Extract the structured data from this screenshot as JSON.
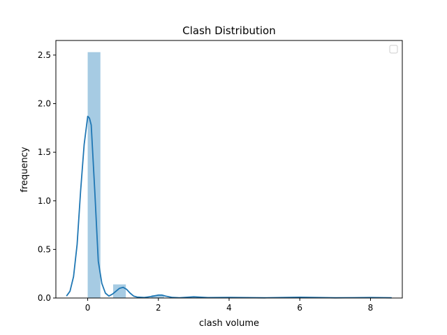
{
  "chart_data": {
    "type": "bar",
    "title": "Clash Distribution",
    "xlabel": "clash volume",
    "ylabel": "frequency",
    "xlim": [
      -0.9,
      8.9
    ],
    "ylim": [
      0,
      2.65
    ],
    "xticks": [
      "0",
      "2",
      "4",
      "6",
      "8"
    ],
    "xtick_values": [
      0,
      2,
      4,
      6,
      8
    ],
    "yticks": [
      "0.0",
      "0.5",
      "1.0",
      "1.5",
      "2.0",
      "2.5"
    ],
    "ytick_values": [
      0,
      0.5,
      1.0,
      1.5,
      2.0,
      2.5
    ],
    "histogram": {
      "bins": [
        {
          "x0": 0.0,
          "x1": 0.36,
          "value": 2.53
        },
        {
          "x0": 0.72,
          "x1": 1.08,
          "value": 0.14
        },
        {
          "x0": 1.8,
          "x1": 2.16,
          "value": 0.03
        }
      ],
      "color": "#a6cbe3"
    },
    "kde": {
      "color": "#1f77b4",
      "x": [
        -0.6,
        -0.5,
        -0.4,
        -0.3,
        -0.2,
        -0.1,
        0.0,
        0.05,
        0.1,
        0.2,
        0.3,
        0.4,
        0.5,
        0.6,
        0.7,
        0.8,
        0.9,
        1.0,
        1.1,
        1.2,
        1.3,
        1.4,
        1.6,
        1.8,
        2.0,
        2.1,
        2.2,
        2.4,
        2.6,
        3.0,
        3.4,
        4.0,
        5.0,
        6.0,
        7.0,
        8.0,
        8.6
      ],
      "y": [
        0.02,
        0.07,
        0.22,
        0.55,
        1.1,
        1.58,
        1.87,
        1.85,
        1.78,
        1.1,
        0.38,
        0.15,
        0.05,
        0.02,
        0.04,
        0.07,
        0.1,
        0.11,
        0.09,
        0.05,
        0.02,
        0.01,
        0.005,
        0.015,
        0.03,
        0.03,
        0.02,
        0.006,
        0.003,
        0.012,
        0.004,
        0.006,
        0.002,
        0.008,
        0.002,
        0.005,
        0.002
      ]
    },
    "legend": {
      "placement": "top-right",
      "entries": []
    }
  }
}
